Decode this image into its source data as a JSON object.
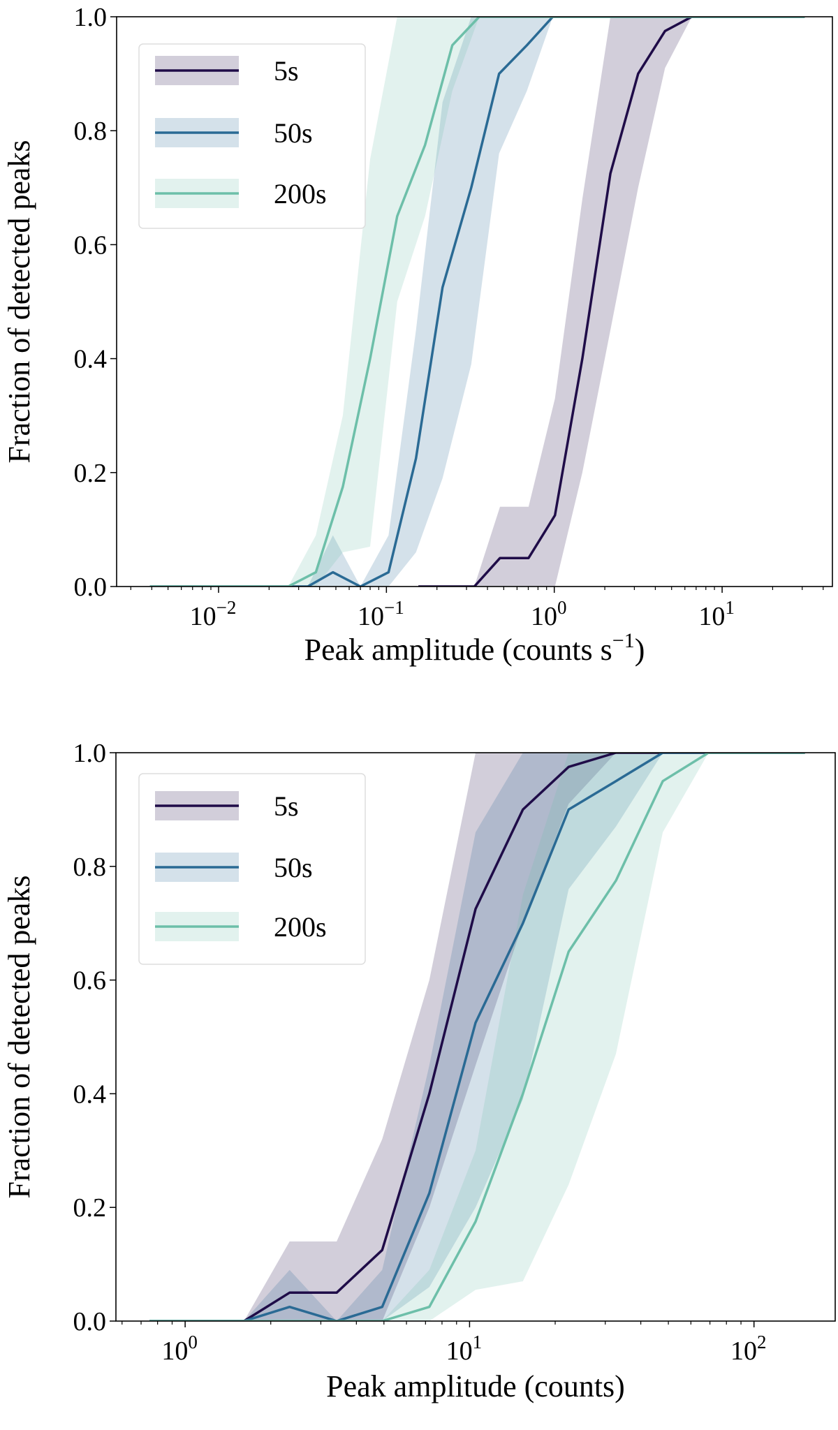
{
  "chart_data": [
    {
      "type": "line",
      "xscale": "log",
      "xlim": [
        0.00247,
        45.4
      ],
      "ylim": [
        0,
        1
      ],
      "xlabel": {
        "text": "Peak amplitude (counts s",
        "sup": "−1",
        "tail": ")"
      },
      "ylabel": "Fraction of detected peaks",
      "xticks": [
        {
          "value": 0.01,
          "base": "10",
          "exp": "−2"
        },
        {
          "value": 0.1,
          "base": "10",
          "exp": "−1"
        },
        {
          "value": 1,
          "base": "10",
          "exp": "0"
        },
        {
          "value": 10,
          "base": "10",
          "exp": "1"
        }
      ],
      "yticks": [
        {
          "value": 0,
          "label": "0.0"
        },
        {
          "value": 0.2,
          "label": "0.2"
        },
        {
          "value": 0.4,
          "label": "0.4"
        },
        {
          "value": 0.6,
          "label": "0.6"
        },
        {
          "value": 0.8,
          "label": "0.8"
        },
        {
          "value": 1,
          "label": "1.0"
        }
      ],
      "grid": false,
      "legend_position": "top-left",
      "series": [
        {
          "name": "5s",
          "color": "#1f0c48",
          "x": [
            0.155,
            0.334,
            0.475,
            0.703,
            1.01,
            1.47,
            2.16,
            3.16,
            4.57,
            6.6,
            31
          ],
          "y": [
            0,
            0,
            0.05,
            0.05,
            0.125,
            0.4,
            0.725,
            0.9,
            0.975,
            1,
            1
          ],
          "lower": [
            0,
            0,
            0,
            0,
            0,
            0.2,
            0.45,
            0.7,
            0.91,
            1,
            1
          ],
          "upper": [
            0,
            0,
            0.14,
            0.14,
            0.33,
            0.68,
            1,
            1,
            1,
            1,
            1
          ]
        },
        {
          "name": "50s",
          "color": "#2a6a94",
          "x": [
            0.0039,
            0.034,
            0.048,
            0.07,
            0.103,
            0.15,
            0.216,
            0.32,
            0.469,
            0.687,
            0.98,
            31
          ],
          "y": [
            0,
            0,
            0.025,
            0,
            0.025,
            0.225,
            0.525,
            0.7,
            0.9,
            0.95,
            1,
            1
          ],
          "lower": [
            0,
            0,
            0,
            0,
            0,
            0.06,
            0.19,
            0.39,
            0.76,
            0.87,
            1,
            1
          ],
          "upper": [
            0,
            0,
            0.09,
            0,
            0.09,
            0.45,
            0.85,
            1,
            1,
            1,
            1,
            1
          ]
        },
        {
          "name": "200s",
          "color": "#6dbfa9",
          "x": [
            0.0039,
            0.026,
            0.038,
            0.055,
            0.08,
            0.116,
            0.17,
            0.247,
            0.357,
            31
          ],
          "y": [
            0,
            0,
            0.025,
            0.175,
            0.4,
            0.65,
            0.775,
            0.95,
            1,
            1
          ],
          "lower": [
            0,
            0,
            0,
            0.06,
            0.07,
            0.5,
            0.65,
            0.87,
            1,
            1
          ],
          "upper": [
            0,
            0,
            0.09,
            0.3,
            0.75,
            1,
            1,
            1,
            1,
            1
          ]
        }
      ]
    },
    {
      "type": "line",
      "xscale": "log",
      "xlim": [
        0.571,
        193
      ],
      "ylim": [
        0,
        1
      ],
      "xlabel": {
        "text": "Peak amplitude (counts)",
        "sup": "",
        "tail": ""
      },
      "ylabel": "Fraction of detected peaks",
      "xticks": [
        {
          "value": 1,
          "base": "10",
          "exp": "0"
        },
        {
          "value": 10,
          "base": "10",
          "exp": "1"
        },
        {
          "value": 100,
          "base": "10",
          "exp": "2"
        }
      ],
      "yticks": [
        {
          "value": 0,
          "label": "0.0"
        },
        {
          "value": 0.2,
          "label": "0.2"
        },
        {
          "value": 0.4,
          "label": "0.4"
        },
        {
          "value": 0.6,
          "label": "0.6"
        },
        {
          "value": 0.8,
          "label": "0.8"
        },
        {
          "value": 1,
          "label": "1.0"
        }
      ],
      "grid": false,
      "legend_position": "top-left",
      "series": [
        {
          "name": "5s",
          "color": "#1f0c48",
          "x": [
            0.75,
            1.61,
            2.33,
            3.41,
            4.93,
            7.22,
            10.5,
            15.4,
            22.3,
            32.7,
            151
          ],
          "y": [
            0,
            0,
            0.05,
            0.05,
            0.125,
            0.4,
            0.725,
            0.9,
            0.975,
            1,
            1
          ],
          "lower": [
            0,
            0,
            0,
            0,
            0,
            0.2,
            0.45,
            0.7,
            0.91,
            1,
            1
          ],
          "upper": [
            0,
            0,
            0.14,
            0.14,
            0.32,
            0.6,
            1,
            1,
            1,
            1,
            1
          ]
        },
        {
          "name": "50s",
          "color": "#2a6a94",
          "x": [
            0.75,
            1.61,
            2.33,
            3.41,
            4.93,
            7.22,
            10.5,
            15.4,
            22.3,
            32.7,
            47.8,
            151
          ],
          "y": [
            0,
            0,
            0.025,
            0,
            0.025,
            0.225,
            0.525,
            0.7,
            0.9,
            0.95,
            1,
            1
          ],
          "lower": [
            0,
            0,
            0,
            0,
            0,
            0.06,
            0.2,
            0.39,
            0.76,
            0.87,
            1,
            1
          ],
          "upper": [
            0,
            0,
            0.09,
            0,
            0.09,
            0.45,
            0.86,
            1,
            1,
            1,
            1,
            1
          ]
        },
        {
          "name": "200s",
          "color": "#6dbfa9",
          "x": [
            0.75,
            4.93,
            7.22,
            10.5,
            15.4,
            22.3,
            32.7,
            47.8,
            69.2,
            151
          ],
          "y": [
            0,
            0,
            0.025,
            0.175,
            0.4,
            0.65,
            0.775,
            0.95,
            1,
            1
          ],
          "lower": [
            0,
            0,
            0,
            0.055,
            0.07,
            0.24,
            0.47,
            0.86,
            1,
            1
          ],
          "upper": [
            0,
            0,
            0.09,
            0.3,
            0.75,
            1,
            1,
            1,
            1,
            1
          ]
        }
      ]
    }
  ]
}
